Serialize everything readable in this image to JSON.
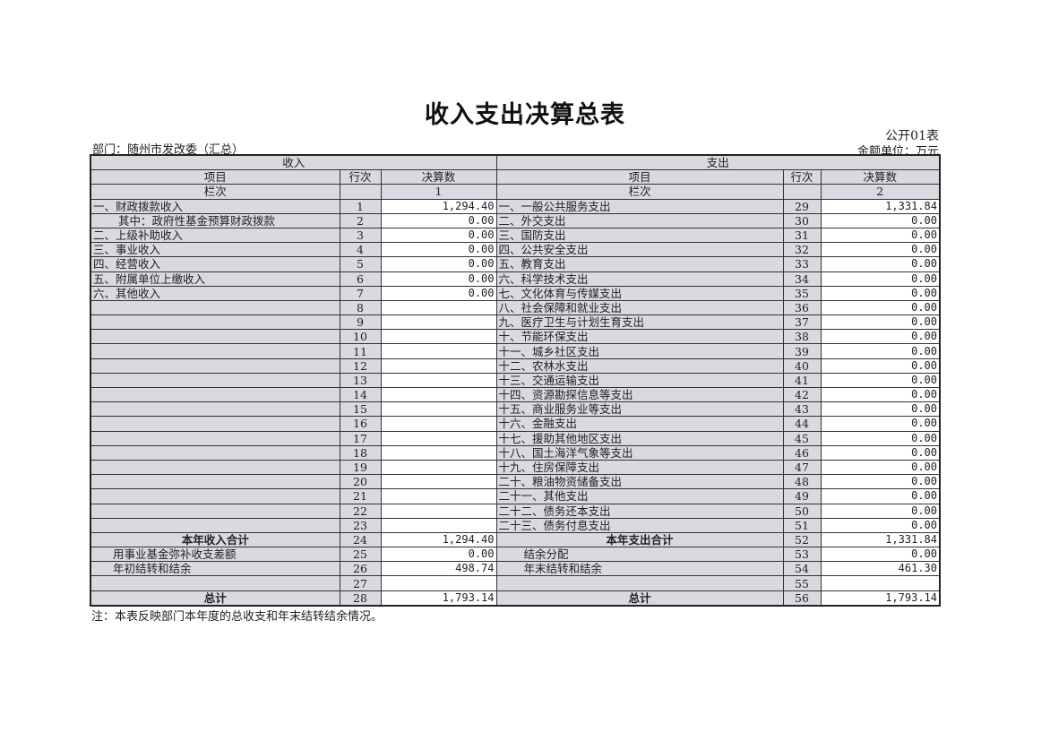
{
  "title": "收入支出决算总表",
  "form_no": "公开01表",
  "unit": "金额单位：万元",
  "department": "部门：随州市发改委（汇总）",
  "headers": {
    "income": "收入",
    "expense": "支出",
    "item": "项目",
    "row_no": "行次",
    "amount": "决算数",
    "col_label": "栏次",
    "income_col": "1",
    "expense_col": "2"
  },
  "rows": [
    {
      "l_item": "一、财政拨款收入",
      "l_no": "1",
      "l_amt": "1,294.40",
      "r_item": "一、一般公共服务支出",
      "r_no": "29",
      "r_amt": "1,331.84"
    },
    {
      "l_item": "其中：政府性基金预算财政拨款",
      "l_no": "2",
      "l_amt": "0.00",
      "r_item": "二、外交支出",
      "r_no": "30",
      "r_amt": "0.00",
      "l_indent": true
    },
    {
      "l_item": "二、上级补助收入",
      "l_no": "3",
      "l_amt": "0.00",
      "r_item": "三、国防支出",
      "r_no": "31",
      "r_amt": "0.00"
    },
    {
      "l_item": "三、事业收入",
      "l_no": "4",
      "l_amt": "0.00",
      "r_item": "四、公共安全支出",
      "r_no": "32",
      "r_amt": "0.00"
    },
    {
      "l_item": "四、经营收入",
      "l_no": "5",
      "l_amt": "0.00",
      "r_item": "五、教育支出",
      "r_no": "33",
      "r_amt": "0.00"
    },
    {
      "l_item": "五、附属单位上缴收入",
      "l_no": "6",
      "l_amt": "0.00",
      "r_item": "六、科学技术支出",
      "r_no": "34",
      "r_amt": "0.00"
    },
    {
      "l_item": "六、其他收入",
      "l_no": "7",
      "l_amt": "0.00",
      "r_item": "七、文化体育与传媒支出",
      "r_no": "35",
      "r_amt": "0.00"
    },
    {
      "l_item": "",
      "l_no": "8",
      "l_amt": "",
      "r_item": "八、社会保障和就业支出",
      "r_no": "36",
      "r_amt": "0.00"
    },
    {
      "l_item": "",
      "l_no": "9",
      "l_amt": "",
      "r_item": "九、医疗卫生与计划生育支出",
      "r_no": "37",
      "r_amt": "0.00"
    },
    {
      "l_item": "",
      "l_no": "10",
      "l_amt": "",
      "r_item": "十、节能环保支出",
      "r_no": "38",
      "r_amt": "0.00"
    },
    {
      "l_item": "",
      "l_no": "11",
      "l_amt": "",
      "r_item": "十一、城乡社区支出",
      "r_no": "39",
      "r_amt": "0.00"
    },
    {
      "l_item": "",
      "l_no": "12",
      "l_amt": "",
      "r_item": "十二、农林水支出",
      "r_no": "40",
      "r_amt": "0.00"
    },
    {
      "l_item": "",
      "l_no": "13",
      "l_amt": "",
      "r_item": "十三、交通运输支出",
      "r_no": "41",
      "r_amt": "0.00"
    },
    {
      "l_item": "",
      "l_no": "14",
      "l_amt": "",
      "r_item": "十四、资源勘探信息等支出",
      "r_no": "42",
      "r_amt": "0.00"
    },
    {
      "l_item": "",
      "l_no": "15",
      "l_amt": "",
      "r_item": "十五、商业服务业等支出",
      "r_no": "43",
      "r_amt": "0.00"
    },
    {
      "l_item": "",
      "l_no": "16",
      "l_amt": "",
      "r_item": "十六、金融支出",
      "r_no": "44",
      "r_amt": "0.00"
    },
    {
      "l_item": "",
      "l_no": "17",
      "l_amt": "",
      "r_item": "十七、援助其他地区支出",
      "r_no": "45",
      "r_amt": "0.00"
    },
    {
      "l_item": "",
      "l_no": "18",
      "l_amt": "",
      "r_item": "十八、国土海洋气象等支出",
      "r_no": "46",
      "r_amt": "0.00"
    },
    {
      "l_item": "",
      "l_no": "19",
      "l_amt": "",
      "r_item": "十九、住房保障支出",
      "r_no": "47",
      "r_amt": "0.00"
    },
    {
      "l_item": "",
      "l_no": "20",
      "l_amt": "",
      "r_item": "二十、粮油物资储备支出",
      "r_no": "48",
      "r_amt": "0.00"
    },
    {
      "l_item": "",
      "l_no": "21",
      "l_amt": "",
      "r_item": "二十一、其他支出",
      "r_no": "49",
      "r_amt": "0.00"
    },
    {
      "l_item": "",
      "l_no": "22",
      "l_amt": "",
      "r_item": "二十二、债务还本支出",
      "r_no": "50",
      "r_amt": "0.00"
    },
    {
      "l_item": "",
      "l_no": "23",
      "l_amt": "",
      "r_item": "二十三、债务付息支出",
      "r_no": "51",
      "r_amt": "0.00"
    },
    {
      "l_item": "本年收入合计",
      "l_no": "24",
      "l_amt": "1,294.40",
      "r_item": "本年支出合计",
      "r_no": "52",
      "r_amt": "1,331.84",
      "bold": true
    },
    {
      "l_item": "用事业基金弥补收支差额",
      "l_no": "25",
      "l_amt": "0.00",
      "r_item": "结余分配",
      "r_no": "53",
      "r_amt": "0.00",
      "sub": true
    },
    {
      "l_item": "年初结转和结余",
      "l_no": "26",
      "l_amt": "498.74",
      "r_item": "年末结转和结余",
      "r_no": "54",
      "r_amt": "461.30",
      "sub": true
    },
    {
      "l_item": "",
      "l_no": "27",
      "l_amt": "",
      "r_item": "",
      "r_no": "55",
      "r_amt": ""
    },
    {
      "l_item": "总计",
      "l_no": "28",
      "l_amt": "1,793.14",
      "r_item": "总计",
      "r_no": "56",
      "r_amt": "1,793.14",
      "bold": true
    }
  ],
  "note": "注：本表反映部门本年度的总收支和年末结转结余情况。"
}
